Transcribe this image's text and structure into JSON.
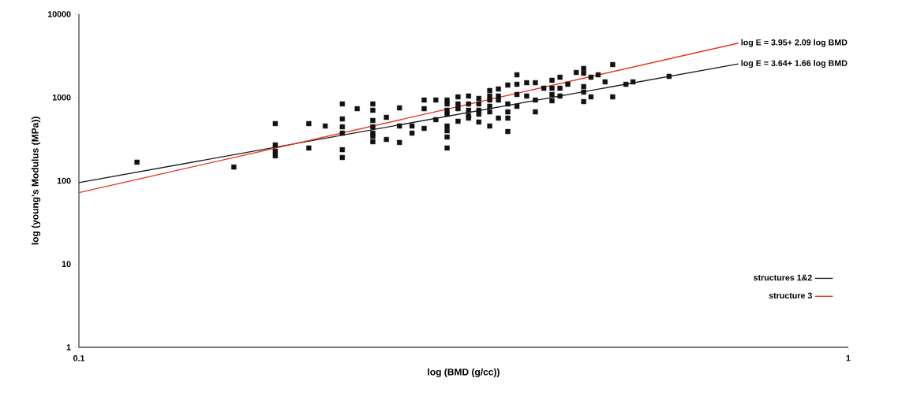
{
  "chart_data": {
    "type": "scatter",
    "xlabel": "log (BMD (g/cc))",
    "ylabel": "log (young's Modulus (MPa))",
    "log": "xy",
    "xlim": [
      0.1,
      1
    ],
    "ylim": [
      1,
      10000
    ],
    "xticks": [
      0.1,
      1
    ],
    "yticks": [
      1,
      10,
      100,
      1000,
      10000
    ],
    "grid": false,
    "legend": "bottom right",
    "series": [
      {
        "marker": "square",
        "color": "#111111",
        "x": [
          0.119,
          0.159,
          0.18,
          0.18,
          0.18,
          0.18,
          0.199,
          0.199,
          0.209,
          0.22,
          0.22,
          0.22,
          0.22,
          0.22,
          0.22,
          0.23,
          0.241,
          0.241,
          0.241,
          0.241,
          0.241,
          0.241,
          0.241,
          0.251,
          0.251,
          0.261,
          0.261,
          0.261,
          0.271,
          0.271,
          0.281,
          0.281,
          0.281,
          0.291,
          0.291,
          0.301,
          0.301,
          0.301,
          0.301,
          0.301,
          0.301,
          0.301,
          0.301,
          0.311,
          0.311,
          0.311,
          0.311,
          0.321,
          0.321,
          0.321,
          0.321,
          0.321,
          0.331,
          0.331,
          0.331,
          0.331,
          0.331,
          0.342,
          0.342,
          0.342,
          0.342,
          0.342,
          0.342,
          0.351,
          0.351,
          0.351,
          0.351,
          0.361,
          0.361,
          0.361,
          0.361,
          0.361,
          0.371,
          0.371,
          0.371,
          0.371,
          0.382,
          0.382,
          0.392,
          0.392,
          0.392,
          0.402,
          0.412,
          0.412,
          0.412,
          0.412,
          0.422,
          0.422,
          0.422,
          0.432,
          0.443,
          0.453,
          0.453,
          0.453,
          0.453,
          0.453,
          0.463,
          0.463,
          0.473,
          0.483,
          0.494,
          0.494,
          0.514,
          0.525,
          0.585
        ],
        "values": [
          167,
          146,
          485,
          269,
          226,
          199,
          485,
          247,
          454,
          836,
          552,
          444,
          373,
          236,
          190,
          733,
          836,
          702,
          529,
          444,
          373,
          342,
          294,
          577,
          313,
          750,
          454,
          288,
          454,
          373,
          931,
          733,
          425,
          931,
          541,
          931,
          836,
          702,
          630,
          454,
          398,
          335,
          247,
          1016,
          836,
          733,
          518,
          1040,
          836,
          702,
          603,
          565,
          973,
          836,
          702,
          630,
          507,
          1211,
          1040,
          931,
          783,
          671,
          454,
          1264,
          1040,
          931,
          565,
          1409,
          836,
          671,
          565,
          390,
          1871,
          1439,
          1085,
          783,
          1503,
          1040,
          1503,
          931,
          671,
          1291,
          1607,
          1291,
          1085,
          912,
          1750,
          1291,
          1040,
          1439,
          1995,
          2228,
          1954,
          1349,
          1159,
          892,
          1750,
          1016,
          1871,
          1538,
          2483,
          1016,
          1439,
          1538,
          1791
        ]
      },
      {
        "type": "line",
        "name": "structures 1&2",
        "color": "#1a1a1a",
        "marker": "none",
        "line_style": "solid",
        "x": [
          0.1,
          0.72
        ],
        "values": [
          95,
          2530
        ]
      },
      {
        "type": "line",
        "name": "structure 3",
        "color": "#e8321e",
        "marker": "none",
        "line_style": "solid",
        "x": [
          0.1,
          0.72
        ],
        "values": [
          72,
          4490
        ]
      }
    ],
    "annotations": [
      {
        "text": "log E = 3.95+ 2.09 log BMD",
        "x": 0.72,
        "y": 4490
      },
      {
        "text": "log E = 3.64+ 1.66 log BMD",
        "x": 0.72,
        "y": 2530
      }
    ]
  }
}
